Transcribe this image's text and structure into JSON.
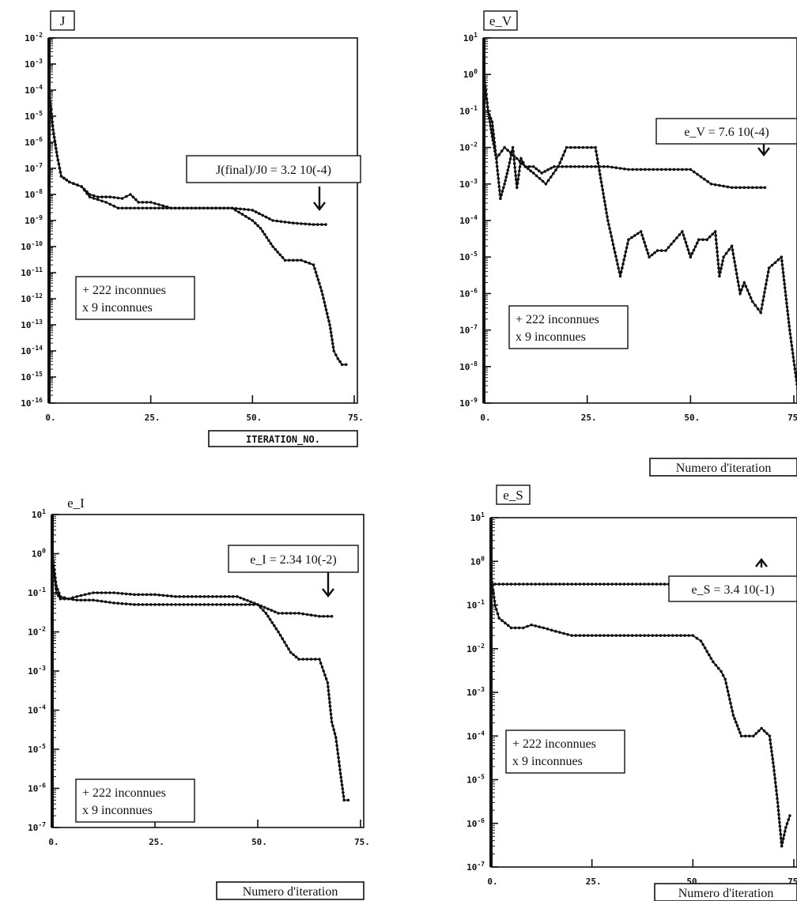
{
  "chart_data": [
    {
      "type": "line",
      "title": "J",
      "xlabel": "ITERATION_NO.",
      "y_scale": "log",
      "ylim": [
        1e-16,
        0.01
      ],
      "xlim": [
        0,
        75
      ],
      "x_ticks": [
        "0.",
        "25.",
        "50.",
        "75."
      ],
      "y_ticks": [
        "10^-2",
        "10^-3",
        "10^-4",
        "10^-5",
        "10^-6",
        "10^-7",
        "10^-8",
        "10^-9",
        "10^-10",
        "10^-11",
        "10^-12",
        "10^-13",
        "10^-14",
        "10^-15",
        "10^-16"
      ],
      "annotation": "J(final)/J0 = 3.2 10(-4)",
      "legend": [
        "+ 222 inconnues",
        "x 9 inconnues"
      ],
      "series": [
        {
          "marker": "+",
          "x": [
            0,
            1,
            2,
            3,
            5,
            8,
            10,
            14,
            17,
            20,
            25,
            30,
            35,
            45,
            50,
            55,
            60,
            65,
            68
          ],
          "y": [
            0.0001,
            3e-06,
            3e-07,
            5e-08,
            3e-08,
            2e-08,
            8e-09,
            5e-09,
            3e-09,
            3e-09,
            3e-09,
            3e-09,
            3e-09,
            3e-09,
            2.5e-09,
            1e-09,
            8e-10,
            7e-10,
            7e-10
          ]
        },
        {
          "marker": "x",
          "x": [
            0,
            1,
            2,
            3,
            5,
            8,
            10,
            12,
            15,
            18,
            20,
            22,
            25,
            30,
            35,
            45,
            50,
            52,
            55,
            58,
            62,
            65,
            67,
            69,
            70,
            71,
            72,
            73
          ],
          "y": [
            0.0001,
            3e-06,
            3e-07,
            5e-08,
            3e-08,
            2e-08,
            1e-08,
            8e-09,
            8e-09,
            7e-09,
            1e-08,
            5e-09,
            5e-09,
            3e-09,
            3e-09,
            3e-09,
            1e-09,
            5e-10,
            1e-10,
            3e-11,
            3e-11,
            2e-11,
            2e-12,
            1e-13,
            1e-14,
            5e-15,
            3e-15,
            3e-15
          ]
        }
      ]
    },
    {
      "type": "line",
      "title": "e_V",
      "xlabel": "Numero d'iteration",
      "y_scale": "log",
      "ylim": [
        1e-09,
        10
      ],
      "xlim": [
        0,
        75
      ],
      "x_ticks": [
        "0.",
        "25.",
        "50.",
        "75."
      ],
      "y_ticks": [
        "10^1",
        "10^0",
        "10^-1",
        "10^-2",
        "10^-3",
        "10^-4",
        "10^-5",
        "10^-6",
        "10^-7",
        "10^-8",
        "10^-9"
      ],
      "annotation": "e_V = 7.6 10(-4)",
      "legend": [
        "+ 222 inconnues",
        "x 9 inconnues"
      ],
      "series": [
        {
          "marker": "+",
          "x": [
            0,
            1,
            2,
            3,
            5,
            8,
            10,
            12,
            14,
            17,
            20,
            25,
            30,
            35,
            40,
            45,
            50,
            55,
            60,
            65,
            68
          ],
          "y": [
            1,
            0.1,
            0.02,
            0.005,
            0.01,
            0.005,
            0.003,
            0.003,
            0.002,
            0.003,
            0.003,
            0.003,
            0.003,
            0.0025,
            0.0025,
            0.0025,
            0.0025,
            0.001,
            0.0008,
            0.0008,
            0.0008
          ]
        },
        {
          "marker": "x",
          "x": [
            0,
            1,
            2,
            3,
            4,
            5,
            6,
            7,
            8,
            9,
            10,
            12,
            15,
            18,
            20,
            22,
            24,
            27,
            30,
            33,
            35,
            38,
            40,
            42,
            44,
            48,
            50,
            52,
            54,
            56,
            57,
            58,
            60,
            62,
            63,
            65,
            67,
            69,
            72,
            74,
            76
          ],
          "y": [
            1,
            0.1,
            0.05,
            0.005,
            0.0004,
            0.001,
            0.003,
            0.01,
            0.0008,
            0.005,
            0.003,
            0.002,
            0.001,
            0.003,
            0.01,
            0.01,
            0.01,
            0.01,
            0.0001,
            3e-06,
            3e-05,
            5e-05,
            1e-05,
            1.5e-05,
            1.5e-05,
            5e-05,
            1e-05,
            3e-05,
            3e-05,
            5e-05,
            3e-06,
            1e-05,
            2e-05,
            1e-06,
            2e-06,
            6e-07,
            3e-07,
            5e-06,
            1e-05,
            1e-07,
            2e-09
          ]
        }
      ]
    },
    {
      "type": "line",
      "title": "e_I",
      "xlabel": "Numero d'iteration",
      "y_scale": "log",
      "ylim": [
        1e-07,
        10
      ],
      "xlim": [
        0,
        75
      ],
      "x_ticks": [
        "0.",
        "25.",
        "50.",
        "75."
      ],
      "y_ticks": [
        "10^1",
        "10^0",
        "10^-1",
        "10^-2",
        "10^-3",
        "10^-4",
        "10^-5",
        "10^-6",
        "10^-7"
      ],
      "annotation": "e_I = 2.34 10(-2)",
      "legend": [
        "+ 222 inconnues",
        "x 9 inconnues"
      ],
      "series": [
        {
          "marker": "+",
          "x": [
            0,
            1,
            2,
            4,
            6,
            8,
            10,
            15,
            20,
            25,
            30,
            35,
            40,
            45,
            50,
            55,
            60,
            65,
            68
          ],
          "y": [
            1,
            0.15,
            0.08,
            0.07,
            0.08,
            0.09,
            0.1,
            0.1,
            0.09,
            0.09,
            0.08,
            0.08,
            0.08,
            0.08,
            0.05,
            0.03,
            0.03,
            0.025,
            0.025
          ]
        },
        {
          "marker": "x",
          "x": [
            0,
            1,
            2,
            4,
            6,
            10,
            15,
            20,
            25,
            30,
            35,
            40,
            45,
            50,
            52,
            55,
            58,
            60,
            62,
            65,
            67,
            68,
            69,
            70,
            71,
            72
          ],
          "y": [
            1,
            0.1,
            0.07,
            0.07,
            0.065,
            0.065,
            0.055,
            0.05,
            0.05,
            0.05,
            0.05,
            0.05,
            0.05,
            0.05,
            0.03,
            0.01,
            0.003,
            0.002,
            0.002,
            0.002,
            0.0005,
            5e-05,
            2e-05,
            3e-06,
            5e-07,
            5e-07
          ]
        }
      ]
    },
    {
      "type": "line",
      "title": "e_S",
      "xlabel": "Numero d'iteration",
      "y_scale": "log",
      "ylim": [
        1e-07,
        10
      ],
      "xlim": [
        0,
        75
      ],
      "x_ticks": [
        "0.",
        "25.",
        "50.",
        "75."
      ],
      "y_ticks": [
        "10^1",
        "10^0",
        "10^-1",
        "10^-2",
        "10^-3",
        "10^-4",
        "10^-5",
        "10^-6",
        "10^-7"
      ],
      "annotation": "e_S = 3.4 10(-1)",
      "legend": [
        "+ 222 inconnues",
        "x 9 inconnues"
      ],
      "series": [
        {
          "marker": "+",
          "x": [
            0,
            5,
            10,
            20,
            30,
            40,
            50,
            60,
            66
          ],
          "y": [
            0.3,
            0.3,
            0.3,
            0.3,
            0.3,
            0.3,
            0.3,
            0.3,
            0.3
          ]
        },
        {
          "marker": "x",
          "x": [
            0,
            1,
            2,
            5,
            8,
            10,
            13,
            16,
            20,
            25,
            30,
            35,
            40,
            45,
            50,
            52,
            55,
            57,
            58,
            60,
            62,
            63,
            65,
            67,
            69,
            70,
            71,
            72,
            73,
            74
          ],
          "y": [
            0.5,
            0.1,
            0.05,
            0.03,
            0.03,
            0.035,
            0.03,
            0.025,
            0.02,
            0.02,
            0.02,
            0.02,
            0.02,
            0.02,
            0.02,
            0.015,
            0.005,
            0.003,
            0.002,
            0.0003,
            0.0001,
            0.0001,
            0.0001,
            0.00015,
            0.0001,
            2e-05,
            3e-06,
            3e-07,
            8e-07,
            1.5e-06
          ]
        }
      ]
    }
  ]
}
